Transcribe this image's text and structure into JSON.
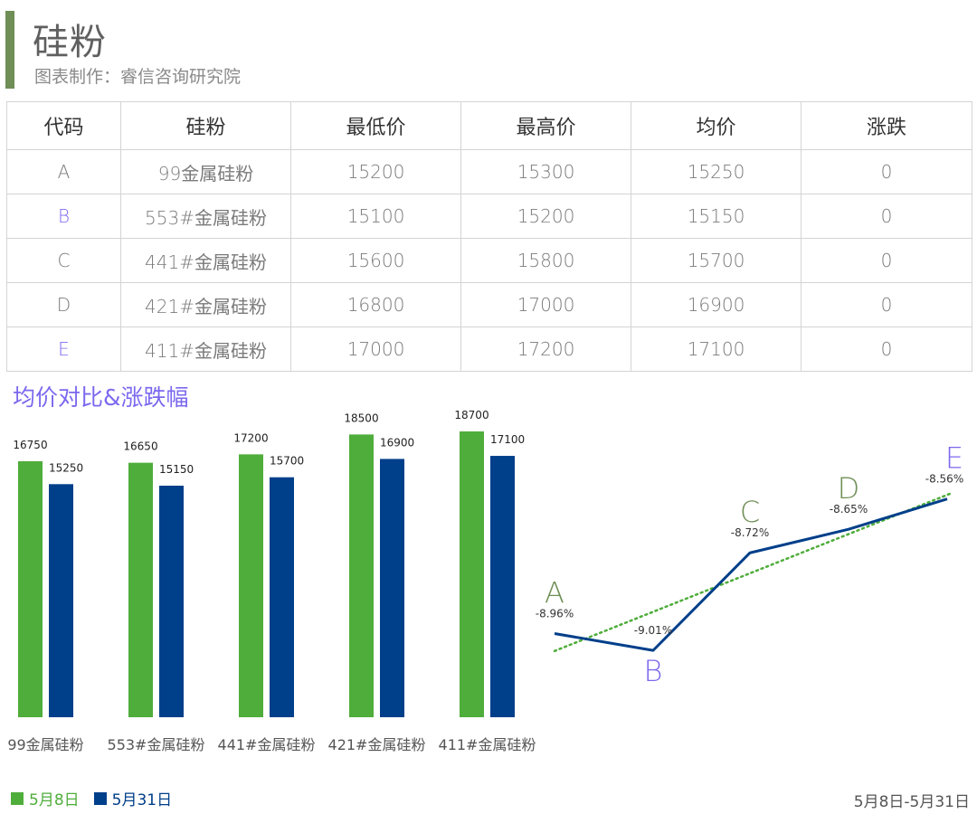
{
  "header": {
    "title": "硅粉",
    "subtitle": "图表制作：睿信咨询研究院"
  },
  "table": {
    "headers": [
      "代码",
      "硅粉",
      "最低价",
      "最高价",
      "均价",
      "涨跌"
    ],
    "rows": [
      [
        "A",
        "99金属硅粉",
        "15200",
        "15300",
        "15250",
        "0"
      ],
      [
        "B",
        "553#金属硅粉",
        "15100",
        "15200",
        "15150",
        "0"
      ],
      [
        "C",
        "441#金属硅粉",
        "15600",
        "15800",
        "15700",
        "0"
      ],
      [
        "D",
        "421#金属硅粉",
        "16800",
        "17000",
        "16900",
        "0"
      ],
      [
        "E",
        "411#金属硅粉",
        "17000",
        "17200",
        "17100",
        "0"
      ]
    ]
  },
  "section_title": "均价对比&涨跌幅",
  "legend": {
    "items": [
      {
        "label": "5月8日",
        "color": "#4fad3b"
      },
      {
        "label": "5月31日",
        "color": "#003f8a"
      }
    ]
  },
  "date_range": "5月8日-5月31日",
  "colors": {
    "green": "#4fad3b",
    "navy": "#003f8a",
    "purple": "#7b68ee",
    "letter_green": "#6f8f56"
  },
  "chart_data": [
    {
      "type": "bar",
      "categories": [
        "99金属硅粉",
        "553#金属硅粉",
        "441#金属硅粉",
        "421#金属硅粉",
        "411#金属硅粉"
      ],
      "series": [
        {
          "name": "5月8日",
          "values": [
            16750,
            16650,
            17200,
            18500,
            18700
          ]
        },
        {
          "name": "5月31日",
          "values": [
            15250,
            15150,
            15700,
            16900,
            17100
          ]
        }
      ],
      "ylim": [
        0,
        18700
      ]
    },
    {
      "type": "line",
      "points": [
        "A",
        "B",
        "C",
        "D",
        "E"
      ],
      "values": [
        -8.96,
        -9.01,
        -8.72,
        -8.65,
        -8.56
      ],
      "labels": [
        "-8.96%",
        "-9.01%",
        "-8.72%",
        "-8.65%",
        "-8.56%"
      ],
      "trendline": true,
      "ylim": [
        -9.05,
        -8.55
      ]
    }
  ]
}
